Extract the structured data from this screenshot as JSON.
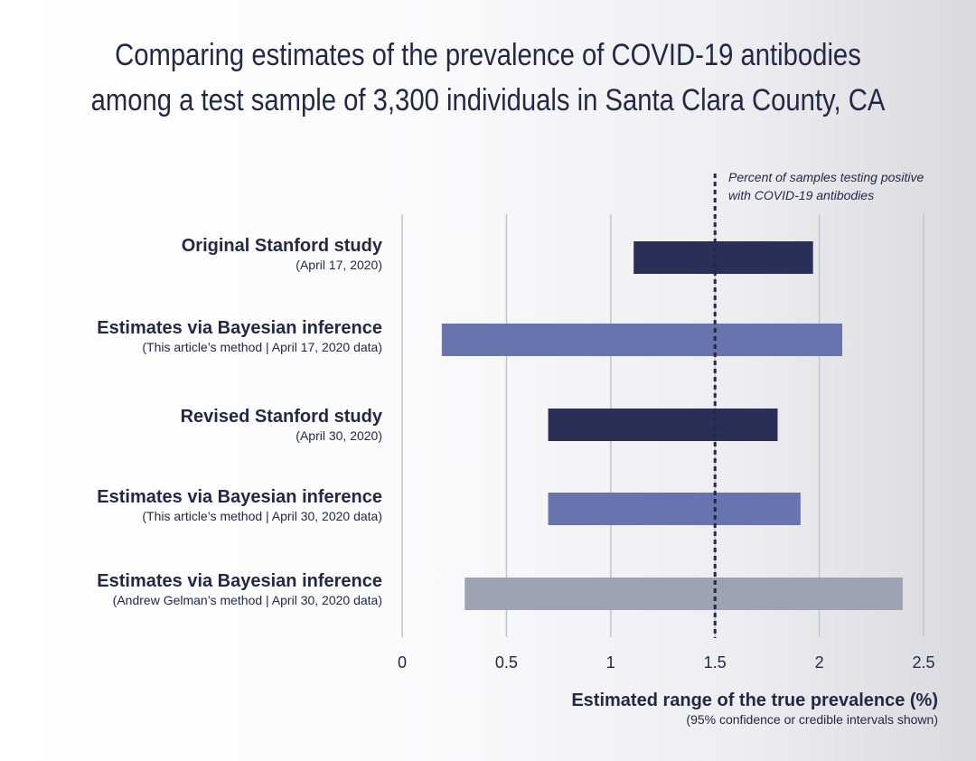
{
  "title_lines": [
    "Comparing estimates of the prevalence of COVID-19 antibodies",
    "among a test sample of 3,300 individuals in Santa Clara County, CA"
  ],
  "annotation_lines": [
    "Percent of samples testing positive",
    "with COVID-19 antibodies"
  ],
  "xlabel": {
    "main": "Estimated range of the true prevalence  (%)",
    "sub": "(95% confidence or credible intervals shown)"
  },
  "colors": {
    "stanford": "#2b2f58",
    "bayes": "#6774ae",
    "gelman": "#9ea3b3",
    "grid": "#c2c4cc",
    "reference": "#232847"
  },
  "chart_data": {
    "type": "bar",
    "orientation": "horizontal",
    "value_type": "range",
    "xlim": [
      0,
      2.5
    ],
    "ticks": [
      0,
      0.5,
      1,
      1.5,
      2,
      2.5
    ],
    "tick_labels": [
      "0",
      "0.5",
      "1",
      "1.5",
      "2",
      "2.5"
    ],
    "reference_line": 1.5,
    "grid": true,
    "categories": [
      {
        "label": "Original Stanford study",
        "sublabel": "(April 17, 2020)",
        "low": 1.11,
        "high": 1.97,
        "color_key": "stanford"
      },
      {
        "label": "Estimates via Bayesian inference",
        "sublabel": "(This article’s method | April 17, 2020 data)",
        "low": 0.19,
        "high": 2.11,
        "color_key": "bayes"
      },
      {
        "label": "Revised Stanford study",
        "sublabel": "(April 30, 2020)",
        "low": 0.7,
        "high": 1.8,
        "color_key": "stanford"
      },
      {
        "label": "Estimates via Bayesian inference",
        "sublabel": "(This article’s method | April 30, 2020 data)",
        "low": 0.7,
        "high": 1.91,
        "color_key": "bayes"
      },
      {
        "label": "Estimates via Bayesian inference",
        "sublabel": "(Andrew Gelman’s method | April 30, 2020 data)",
        "low": 0.3,
        "high": 2.4,
        "color_key": "gelman"
      }
    ]
  }
}
